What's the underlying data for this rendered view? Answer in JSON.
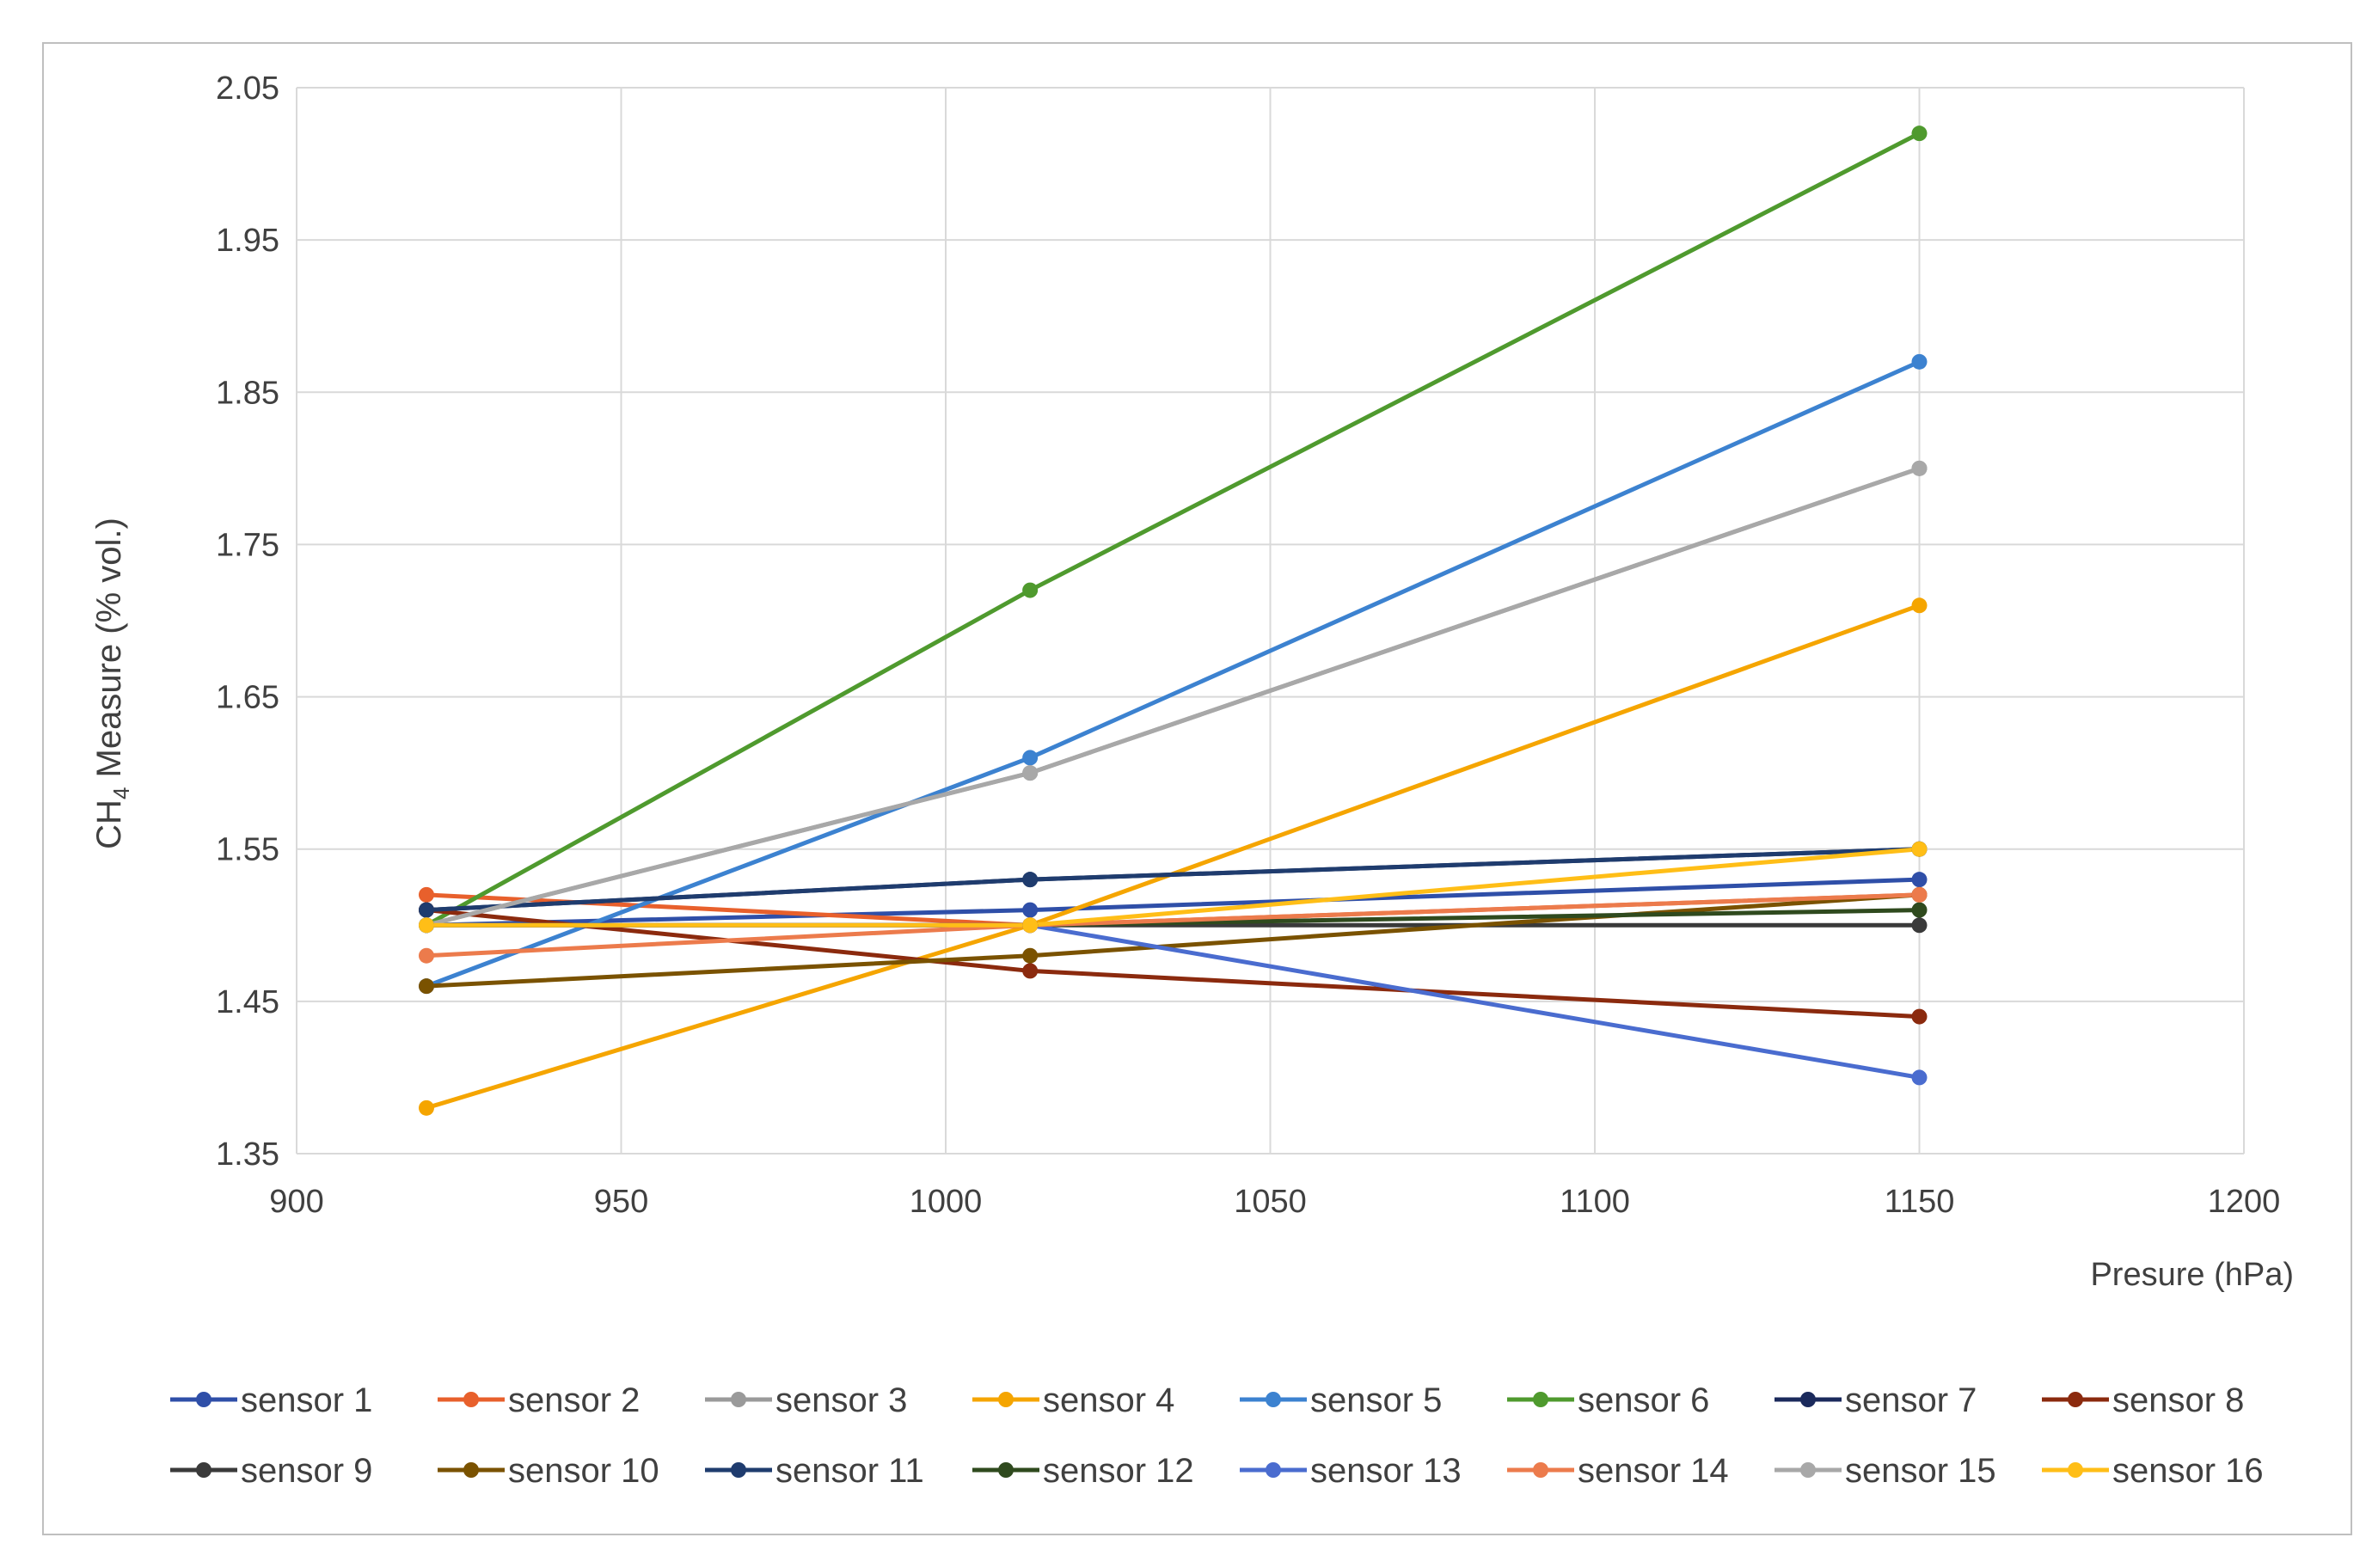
{
  "chart_data": {
    "type": "line",
    "title": "",
    "xlabel": "Presure (hPa)",
    "ylabel_main": "CH",
    "ylabel_sub": "4",
    "ylabel_rest": " Measure (% vol.)",
    "xlim": [
      900,
      1200
    ],
    "ylim": [
      1.35,
      2.05
    ],
    "xticks": [
      900,
      950,
      1000,
      1050,
      1100,
      1150,
      1200
    ],
    "xtick_labels": [
      "900",
      "950",
      "1000",
      "1050",
      "1100",
      "1150",
      "1200"
    ],
    "yticks": [
      1.35,
      1.45,
      1.55,
      1.65,
      1.75,
      1.85,
      1.95,
      2.05
    ],
    "ytick_labels": [
      "1.35",
      "1.45",
      "1.55",
      "1.65",
      "1.75",
      "1.85",
      "1.95",
      "2.05"
    ],
    "grid": true,
    "legend_position": "bottom",
    "x": [
      920,
      1013,
      1150
    ],
    "series": [
      {
        "name": "sensor 1",
        "color": "#2F4FA8",
        "values": [
          1.5,
          1.51,
          1.53
        ]
      },
      {
        "name": "sensor 2",
        "color": "#E8602C",
        "values": [
          1.52,
          1.5,
          1.52
        ]
      },
      {
        "name": "sensor 3",
        "color": "#9A9A9A",
        "values": [
          1.5,
          1.6,
          1.8
        ]
      },
      {
        "name": "sensor 4",
        "color": "#F5A500",
        "values": [
          1.38,
          1.5,
          1.71
        ]
      },
      {
        "name": "sensor 5",
        "color": "#3C82D0",
        "values": [
          1.46,
          1.61,
          1.87
        ]
      },
      {
        "name": "sensor 6",
        "color": "#4F9A2E",
        "values": [
          1.5,
          1.72,
          2.02
        ]
      },
      {
        "name": "sensor 7",
        "color": "#1B2A5C",
        "values": [
          1.51,
          1.53,
          1.55
        ]
      },
      {
        "name": "sensor 8",
        "color": "#8B2A0E",
        "values": [
          1.51,
          1.47,
          1.44
        ]
      },
      {
        "name": "sensor 9",
        "color": "#3A3A3A",
        "values": [
          1.5,
          1.5,
          1.5
        ]
      },
      {
        "name": "sensor 10",
        "color": "#7A5200",
        "values": [
          1.46,
          1.48,
          1.52
        ]
      },
      {
        "name": "sensor 11",
        "color": "#1F3C6E",
        "values": [
          1.51,
          1.53,
          1.55
        ]
      },
      {
        "name": "sensor 12",
        "color": "#2F4A1E",
        "values": [
          1.5,
          1.5,
          1.51
        ]
      },
      {
        "name": "sensor 13",
        "color": "#4A6CCF",
        "values": [
          1.5,
          1.5,
          1.4
        ]
      },
      {
        "name": "sensor 14",
        "color": "#EC7B4C",
        "values": [
          1.48,
          1.5,
          1.52
        ]
      },
      {
        "name": "sensor 15",
        "color": "#A8A8A8",
        "values": [
          1.5,
          1.6,
          1.8
        ]
      },
      {
        "name": "sensor 16",
        "color": "#FFBE17",
        "values": [
          1.5,
          1.5,
          1.55
        ]
      }
    ]
  }
}
